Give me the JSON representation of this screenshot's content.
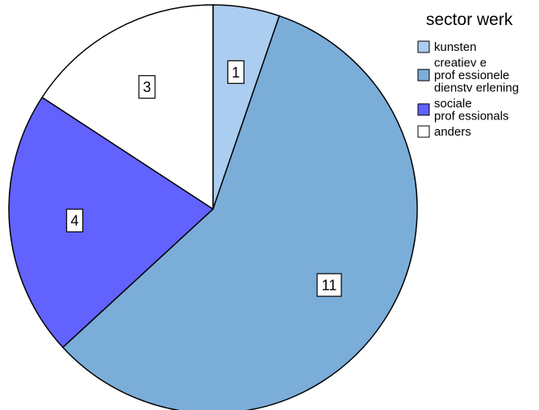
{
  "chart_data": {
    "type": "pie",
    "legend_title": "sector werk",
    "legend_position": "top-right",
    "categories": [
      "kunsten",
      "creatiev e prof essionele dienstv erlening",
      "sociale prof essionals",
      "anders"
    ],
    "legend_lines": [
      [
        "kunsten"
      ],
      [
        "creatiev e",
        "prof essionele",
        "dienstv erlening"
      ],
      [
        "sociale",
        "prof essionals"
      ],
      [
        "anders"
      ]
    ],
    "values": [
      1,
      11,
      4,
      3
    ],
    "colors": [
      "#abcdf0",
      "#7badd9",
      "#6262ff",
      "#ffffff"
    ],
    "start_angle_deg": 0,
    "direction": "clockwise"
  }
}
